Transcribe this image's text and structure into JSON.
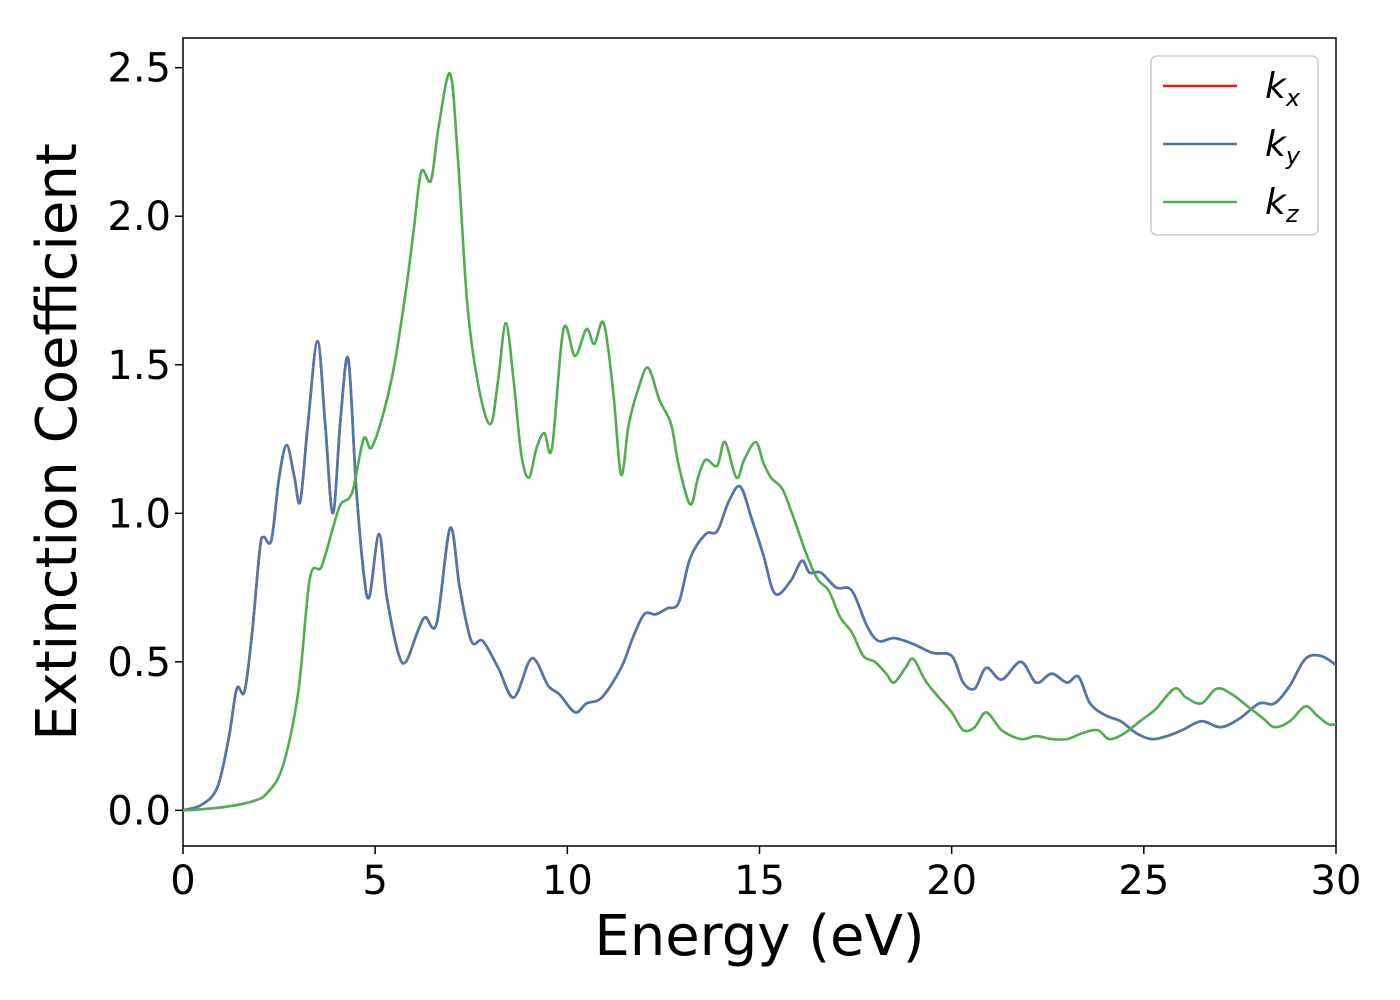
{
  "chart_data": {
    "type": "line",
    "xlabel": "Energy (eV)",
    "ylabel": "Extinction Coefficient",
    "xlim": [
      0,
      30
    ],
    "ylim": [
      -0.12,
      2.6
    ],
    "xticks": [
      "0",
      "5",
      "10",
      "15",
      "20",
      "25",
      "30"
    ],
    "yticks": [
      "0.0",
      "0.5",
      "1.0",
      "1.5",
      "2.0",
      "2.5"
    ],
    "grid": false,
    "legend_position": "top-right",
    "series": [
      {
        "name": "kx",
        "label_base": "k",
        "label_sub": "x",
        "color": "#e41a1c",
        "same_as": "ky"
      },
      {
        "name": "ky",
        "label_base": "k",
        "label_sub": "y",
        "color": "#4a78b0",
        "points": [
          [
            0,
            0.0
          ],
          [
            0.5,
            0.02
          ],
          [
            0.9,
            0.08
          ],
          [
            1.2,
            0.25
          ],
          [
            1.4,
            0.41
          ],
          [
            1.6,
            0.4
          ],
          [
            1.8,
            0.6
          ],
          [
            2.0,
            0.88
          ],
          [
            2.1,
            0.92
          ],
          [
            2.3,
            0.91
          ],
          [
            2.5,
            1.12
          ],
          [
            2.7,
            1.23
          ],
          [
            2.9,
            1.12
          ],
          [
            3.05,
            1.04
          ],
          [
            3.25,
            1.3
          ],
          [
            3.5,
            1.58
          ],
          [
            3.7,
            1.3
          ],
          [
            3.9,
            1.0
          ],
          [
            4.1,
            1.32
          ],
          [
            4.3,
            1.52
          ],
          [
            4.5,
            1.1
          ],
          [
            4.7,
            0.8
          ],
          [
            4.85,
            0.72
          ],
          [
            5.1,
            0.93
          ],
          [
            5.3,
            0.72
          ],
          [
            5.6,
            0.53
          ],
          [
            5.8,
            0.5
          ],
          [
            6.1,
            0.6
          ],
          [
            6.3,
            0.65
          ],
          [
            6.6,
            0.63
          ],
          [
            6.95,
            0.95
          ],
          [
            7.2,
            0.75
          ],
          [
            7.5,
            0.57
          ],
          [
            7.8,
            0.57
          ],
          [
            8.2,
            0.48
          ],
          [
            8.6,
            0.38
          ],
          [
            9.0,
            0.5
          ],
          [
            9.2,
            0.5
          ],
          [
            9.5,
            0.42
          ],
          [
            9.8,
            0.39
          ],
          [
            10.2,
            0.33
          ],
          [
            10.5,
            0.36
          ],
          [
            10.9,
            0.38
          ],
          [
            11.4,
            0.48
          ],
          [
            11.7,
            0.58
          ],
          [
            12.0,
            0.66
          ],
          [
            12.3,
            0.66
          ],
          [
            12.6,
            0.68
          ],
          [
            12.9,
            0.7
          ],
          [
            13.2,
            0.85
          ],
          [
            13.6,
            0.93
          ],
          [
            13.9,
            0.94
          ],
          [
            14.2,
            1.04
          ],
          [
            14.5,
            1.09
          ],
          [
            14.8,
            0.98
          ],
          [
            15.1,
            0.86
          ],
          [
            15.4,
            0.73
          ],
          [
            15.8,
            0.77
          ],
          [
            16.1,
            0.84
          ],
          [
            16.3,
            0.8
          ],
          [
            16.6,
            0.8
          ],
          [
            17.0,
            0.75
          ],
          [
            17.4,
            0.74
          ],
          [
            17.8,
            0.62
          ],
          [
            18.1,
            0.57
          ],
          [
            18.5,
            0.58
          ],
          [
            19.0,
            0.56
          ],
          [
            19.5,
            0.53
          ],
          [
            20.0,
            0.52
          ],
          [
            20.3,
            0.43
          ],
          [
            20.6,
            0.41
          ],
          [
            20.9,
            0.48
          ],
          [
            21.3,
            0.44
          ],
          [
            21.8,
            0.5
          ],
          [
            22.2,
            0.43
          ],
          [
            22.6,
            0.46
          ],
          [
            23.0,
            0.43
          ],
          [
            23.3,
            0.45
          ],
          [
            23.6,
            0.36
          ],
          [
            24.0,
            0.32
          ],
          [
            24.4,
            0.3
          ],
          [
            24.8,
            0.26
          ],
          [
            25.2,
            0.24
          ],
          [
            25.6,
            0.25
          ],
          [
            26.0,
            0.27
          ],
          [
            26.5,
            0.3
          ],
          [
            27.0,
            0.28
          ],
          [
            27.5,
            0.31
          ],
          [
            28.0,
            0.36
          ],
          [
            28.4,
            0.36
          ],
          [
            28.8,
            0.42
          ],
          [
            29.2,
            0.51
          ],
          [
            29.6,
            0.52
          ],
          [
            30.0,
            0.49
          ]
        ]
      },
      {
        "name": "kz",
        "label_base": "k",
        "label_sub": "z",
        "color": "#4daf4a",
        "points": [
          [
            0,
            0.0
          ],
          [
            1.0,
            0.01
          ],
          [
            1.8,
            0.03
          ],
          [
            2.2,
            0.06
          ],
          [
            2.6,
            0.15
          ],
          [
            3.0,
            0.4
          ],
          [
            3.3,
            0.78
          ],
          [
            3.6,
            0.82
          ],
          [
            3.9,
            0.95
          ],
          [
            4.1,
            1.03
          ],
          [
            4.4,
            1.07
          ],
          [
            4.7,
            1.25
          ],
          [
            4.9,
            1.22
          ],
          [
            5.2,
            1.33
          ],
          [
            5.5,
            1.5
          ],
          [
            5.8,
            1.75
          ],
          [
            6.0,
            1.95
          ],
          [
            6.2,
            2.15
          ],
          [
            6.45,
            2.12
          ],
          [
            6.65,
            2.3
          ],
          [
            6.95,
            2.48
          ],
          [
            7.15,
            2.2
          ],
          [
            7.4,
            1.7
          ],
          [
            7.7,
            1.42
          ],
          [
            8.0,
            1.3
          ],
          [
            8.2,
            1.45
          ],
          [
            8.4,
            1.64
          ],
          [
            8.6,
            1.45
          ],
          [
            8.8,
            1.2
          ],
          [
            9.0,
            1.12
          ],
          [
            9.2,
            1.22
          ],
          [
            9.4,
            1.27
          ],
          [
            9.6,
            1.22
          ],
          [
            9.9,
            1.62
          ],
          [
            10.2,
            1.53
          ],
          [
            10.5,
            1.62
          ],
          [
            10.7,
            1.57
          ],
          [
            10.95,
            1.64
          ],
          [
            11.2,
            1.4
          ],
          [
            11.4,
            1.13
          ],
          [
            11.6,
            1.3
          ],
          [
            11.85,
            1.42
          ],
          [
            12.1,
            1.49
          ],
          [
            12.4,
            1.38
          ],
          [
            12.7,
            1.3
          ],
          [
            12.9,
            1.16
          ],
          [
            13.2,
            1.03
          ],
          [
            13.4,
            1.12
          ],
          [
            13.6,
            1.18
          ],
          [
            13.9,
            1.16
          ],
          [
            14.1,
            1.24
          ],
          [
            14.4,
            1.12
          ],
          [
            14.6,
            1.18
          ],
          [
            14.9,
            1.24
          ],
          [
            15.1,
            1.17
          ],
          [
            15.3,
            1.12
          ],
          [
            15.6,
            1.08
          ],
          [
            15.9,
            0.98
          ],
          [
            16.2,
            0.87
          ],
          [
            16.5,
            0.78
          ],
          [
            16.8,
            0.74
          ],
          [
            17.1,
            0.65
          ],
          [
            17.4,
            0.6
          ],
          [
            17.7,
            0.52
          ],
          [
            18.0,
            0.5
          ],
          [
            18.3,
            0.46
          ],
          [
            18.5,
            0.43
          ],
          [
            18.8,
            0.48
          ],
          [
            19.0,
            0.51
          ],
          [
            19.3,
            0.44
          ],
          [
            19.6,
            0.39
          ],
          [
            20.0,
            0.33
          ],
          [
            20.3,
            0.27
          ],
          [
            20.6,
            0.28
          ],
          [
            20.9,
            0.33
          ],
          [
            21.3,
            0.27
          ],
          [
            21.8,
            0.24
          ],
          [
            22.2,
            0.25
          ],
          [
            22.6,
            0.24
          ],
          [
            23.0,
            0.24
          ],
          [
            23.4,
            0.26
          ],
          [
            23.8,
            0.27
          ],
          [
            24.1,
            0.24
          ],
          [
            24.5,
            0.26
          ],
          [
            24.9,
            0.3
          ],
          [
            25.3,
            0.34
          ],
          [
            25.8,
            0.41
          ],
          [
            26.1,
            0.38
          ],
          [
            26.5,
            0.36
          ],
          [
            26.9,
            0.41
          ],
          [
            27.3,
            0.39
          ],
          [
            27.7,
            0.35
          ],
          [
            28.1,
            0.31
          ],
          [
            28.4,
            0.28
          ],
          [
            28.8,
            0.3
          ],
          [
            29.2,
            0.35
          ],
          [
            29.5,
            0.32
          ],
          [
            29.8,
            0.29
          ],
          [
            30.0,
            0.29
          ]
        ]
      }
    ]
  }
}
